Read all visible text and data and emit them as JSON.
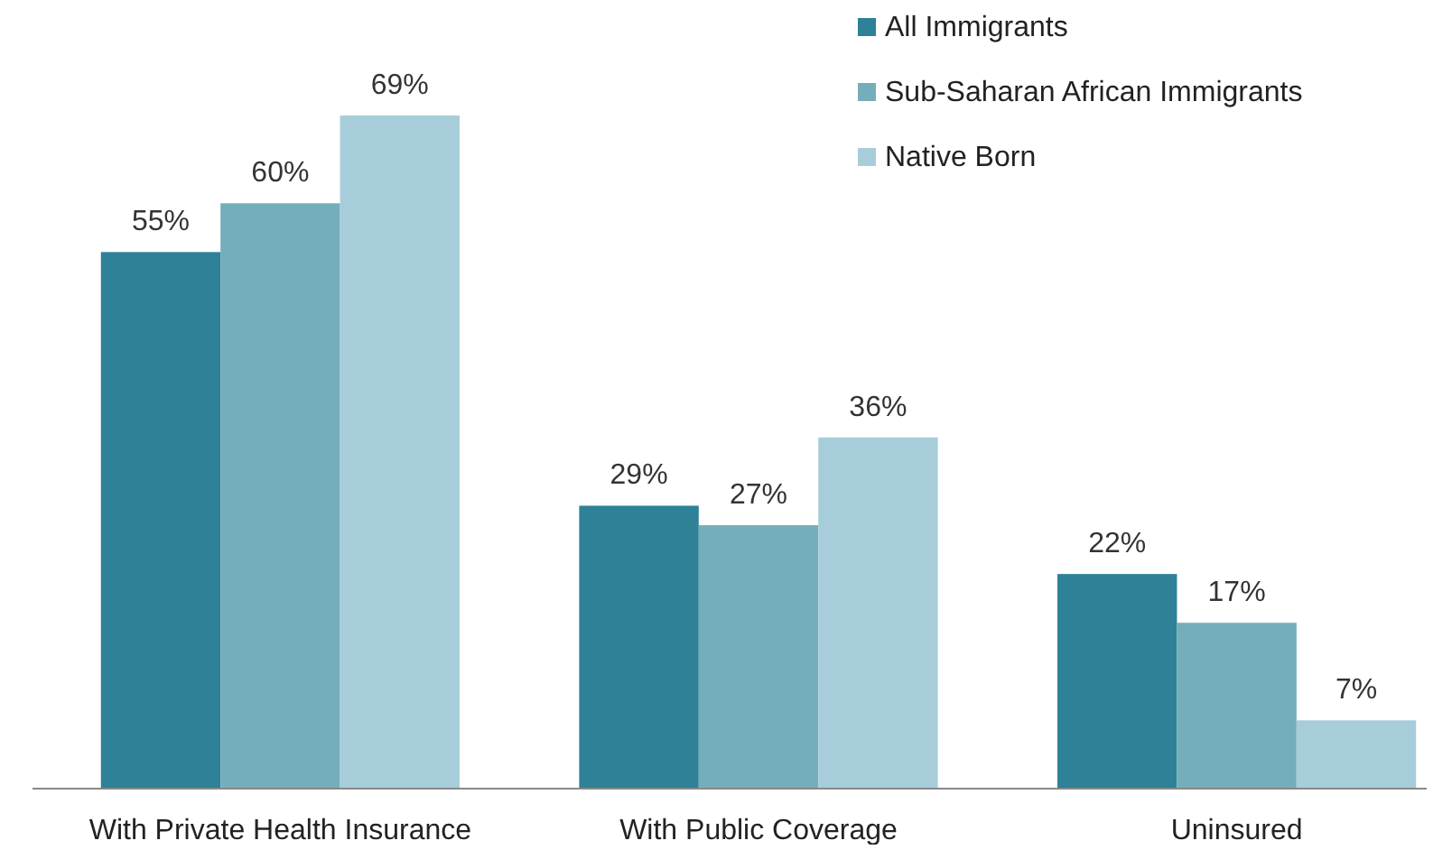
{
  "chart_data": {
    "type": "bar",
    "categories": [
      "With Private Health Insurance",
      "With Public Coverage",
      "Uninsured"
    ],
    "series": [
      {
        "name": "All Immigrants",
        "color": "#2e8196",
        "values": [
          55,
          29,
          22
        ],
        "value_labels": [
          "55%",
          "29%",
          "22%"
        ]
      },
      {
        "name": "Sub-Saharan African Immigrants",
        "color": "#74aebb",
        "values": [
          60,
          27,
          17
        ],
        "value_labels": [
          "60%",
          "27%",
          "17%"
        ]
      },
      {
        "name": "Native Born",
        "color": "#a7cddb",
        "values": [
          69,
          36,
          7
        ],
        "value_labels": [
          "69%",
          "36%",
          "7%"
        ]
      }
    ],
    "legend": "top right"
  }
}
